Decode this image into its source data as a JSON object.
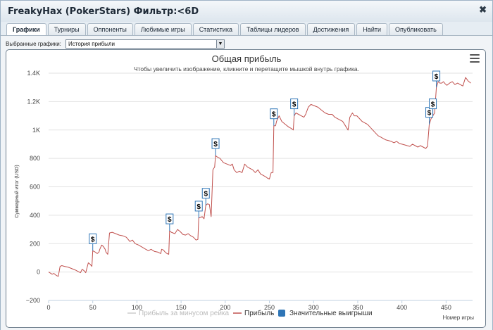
{
  "window": {
    "title": "FreakyHax (PokerStars) Фильтр:<6D",
    "close_label": "✖"
  },
  "tabs": [
    {
      "label": "Графики",
      "active": true
    },
    {
      "label": "Турниры"
    },
    {
      "label": "Оппоненты"
    },
    {
      "label": "Любимые игры"
    },
    {
      "label": "Статистика"
    },
    {
      "label": "Таблицы лидеров"
    },
    {
      "label": "Достижения"
    },
    {
      "label": "Найти"
    },
    {
      "label": "Опубликовать"
    }
  ],
  "graph_selector": {
    "label": "Выбранные графики:",
    "value": "История прибыли"
  },
  "chart_data": {
    "type": "line",
    "title": "Общая прибыль",
    "subtitle": "Чтобы увеличить изображение, кликните и перетащите мышкой внутрь графика.",
    "xlabel": "Номер игры",
    "ylabel": "Суммарный итог (USD)",
    "xlim": [
      0,
      480
    ],
    "ylim": [
      -200,
      1400
    ],
    "x_ticks": [
      "0",
      "50",
      "100",
      "150",
      "200",
      "250",
      "300",
      "350",
      "400",
      "450"
    ],
    "y_ticks": [
      "−200",
      "0",
      "200",
      "400",
      "600",
      "800",
      "1K",
      "1.2K",
      "1.4K"
    ],
    "grid": "horizontal",
    "legend": [
      {
        "name": "Прибыль за минусом рейка",
        "color": "#cccccc",
        "hidden": true
      },
      {
        "name": "Прибыль",
        "color": "#c0504d"
      },
      {
        "name": "Значительные выигрыши",
        "color": "#2e75b6"
      }
    ],
    "series": [
      {
        "name": "Прибыль",
        "color": "#c0504d",
        "points": [
          [
            0,
            0
          ],
          [
            4,
            -15
          ],
          [
            6,
            -10
          ],
          [
            9,
            -25
          ],
          [
            11,
            -30
          ],
          [
            13,
            40
          ],
          [
            15,
            45
          ],
          [
            18,
            40
          ],
          [
            22,
            35
          ],
          [
            26,
            25
          ],
          [
            30,
            15
          ],
          [
            33,
            5
          ],
          [
            36,
            -5
          ],
          [
            38,
            20
          ],
          [
            40,
            10
          ],
          [
            42,
            -5
          ],
          [
            45,
            65
          ],
          [
            47,
            55
          ],
          [
            49,
            40
          ],
          [
            50,
            150
          ],
          [
            53,
            140
          ],
          [
            55,
            130
          ],
          [
            57,
            140
          ],
          [
            58,
            160
          ],
          [
            60,
            190
          ],
          [
            62,
            180
          ],
          [
            64,
            160
          ],
          [
            65,
            140
          ],
          [
            67,
            125
          ],
          [
            69,
            275
          ],
          [
            72,
            280
          ],
          [
            76,
            270
          ],
          [
            80,
            260
          ],
          [
            84,
            255
          ],
          [
            88,
            245
          ],
          [
            90,
            230
          ],
          [
            92,
            215
          ],
          [
            95,
            225
          ],
          [
            98,
            200
          ],
          [
            102,
            190
          ],
          [
            106,
            175
          ],
          [
            110,
            160
          ],
          [
            113,
            150
          ],
          [
            116,
            160
          ],
          [
            120,
            145
          ],
          [
            124,
            140
          ],
          [
            127,
            130
          ],
          [
            128,
            160
          ],
          [
            130,
            155
          ],
          [
            132,
            140
          ],
          [
            134,
            130
          ],
          [
            136,
            125
          ],
          [
            137,
            290
          ],
          [
            139,
            280
          ],
          [
            141,
            275
          ],
          [
            143,
            270
          ],
          [
            146,
            300
          ],
          [
            149,
            285
          ],
          [
            152,
            265
          ],
          [
            155,
            260
          ],
          [
            158,
            270
          ],
          [
            161,
            255
          ],
          [
            164,
            245
          ],
          [
            167,
            225
          ],
          [
            169,
            230
          ],
          [
            170,
            380
          ],
          [
            172,
            385
          ],
          [
            174,
            390
          ],
          [
            176,
            375
          ],
          [
            178,
            470
          ],
          [
            180,
            480
          ],
          [
            182,
            475
          ],
          [
            184,
            390
          ],
          [
            186,
            720
          ],
          [
            188,
            740
          ],
          [
            189,
            820
          ],
          [
            191,
            810
          ],
          [
            194,
            800
          ],
          [
            198,
            770
          ],
          [
            202,
            760
          ],
          [
            206,
            750
          ],
          [
            208,
            760
          ],
          [
            210,
            720
          ],
          [
            213,
            700
          ],
          [
            216,
            710
          ],
          [
            219,
            700
          ],
          [
            222,
            760
          ],
          [
            225,
            740
          ],
          [
            228,
            730
          ],
          [
            231,
            720
          ],
          [
            234,
            700
          ],
          [
            237,
            720
          ],
          [
            240,
            690
          ],
          [
            243,
            680
          ],
          [
            246,
            670
          ],
          [
            248,
            660
          ],
          [
            250,
            655
          ],
          [
            252,
            700
          ],
          [
            254,
            700
          ],
          [
            255,
            1030
          ],
          [
            257,
            1030
          ],
          [
            258,
            1060
          ],
          [
            261,
            1100
          ],
          [
            264,
            1060
          ],
          [
            268,
            1040
          ],
          [
            272,
            1020
          ],
          [
            275,
            1010
          ],
          [
            277,
            1000
          ],
          [
            278,
            1100
          ],
          [
            280,
            1120
          ],
          [
            283,
            1110
          ],
          [
            286,
            1100
          ],
          [
            289,
            1090
          ],
          [
            291,
            1110
          ],
          [
            294,
            1160
          ],
          [
            297,
            1180
          ],
          [
            301,
            1170
          ],
          [
            305,
            1160
          ],
          [
            309,
            1140
          ],
          [
            313,
            1120
          ],
          [
            317,
            1110
          ],
          [
            321,
            1110
          ],
          [
            324,
            1090
          ],
          [
            327,
            1080
          ],
          [
            330,
            1070
          ],
          [
            333,
            1060
          ],
          [
            336,
            1030
          ],
          [
            339,
            1000
          ],
          [
            341,
            1090
          ],
          [
            344,
            1120
          ],
          [
            346,
            1100
          ],
          [
            349,
            1100
          ],
          [
            352,
            1080
          ],
          [
            355,
            1060
          ],
          [
            358,
            1050
          ],
          [
            361,
            1040
          ],
          [
            364,
            1020
          ],
          [
            367,
            1000
          ],
          [
            370,
            980
          ],
          [
            373,
            960
          ],
          [
            376,
            950
          ],
          [
            379,
            940
          ],
          [
            382,
            930
          ],
          [
            385,
            925
          ],
          [
            388,
            920
          ],
          [
            391,
            910
          ],
          [
            394,
            920
          ],
          [
            397,
            905
          ],
          [
            400,
            900
          ],
          [
            403,
            895
          ],
          [
            406,
            890
          ],
          [
            409,
            885
          ],
          [
            412,
            900
          ],
          [
            415,
            890
          ],
          [
            418,
            880
          ],
          [
            421,
            890
          ],
          [
            424,
            880
          ],
          [
            427,
            870
          ],
          [
            429,
            885
          ],
          [
            431,
            1040
          ],
          [
            433,
            1080
          ],
          [
            435,
            1100
          ],
          [
            437,
            1120
          ],
          [
            439,
            1300
          ],
          [
            441,
            1340
          ],
          [
            443,
            1330
          ],
          [
            445,
            1330
          ],
          [
            447,
            1340
          ],
          [
            449,
            1325
          ],
          [
            451,
            1315
          ],
          [
            454,
            1330
          ],
          [
            457,
            1340
          ],
          [
            460,
            1320
          ],
          [
            463,
            1330
          ],
          [
            466,
            1320
          ],
          [
            469,
            1310
          ],
          [
            472,
            1370
          ],
          [
            475,
            1345
          ],
          [
            478,
            1330
          ]
        ]
      }
    ],
    "flags": [
      {
        "x": 50,
        "y": 150,
        "label": "$"
      },
      {
        "x": 137,
        "y": 290,
        "label": "$"
      },
      {
        "x": 170,
        "y": 380,
        "label": "$"
      },
      {
        "x": 178,
        "y": 470,
        "label": "$"
      },
      {
        "x": 189,
        "y": 820,
        "label": "$"
      },
      {
        "x": 255,
        "y": 1030,
        "label": "$"
      },
      {
        "x": 278,
        "y": 1100,
        "label": "$"
      },
      {
        "x": 431,
        "y": 1040,
        "label": "$"
      },
      {
        "x": 435,
        "y": 1100,
        "label": "$"
      },
      {
        "x": 439,
        "y": 1300,
        "label": "$"
      }
    ]
  }
}
